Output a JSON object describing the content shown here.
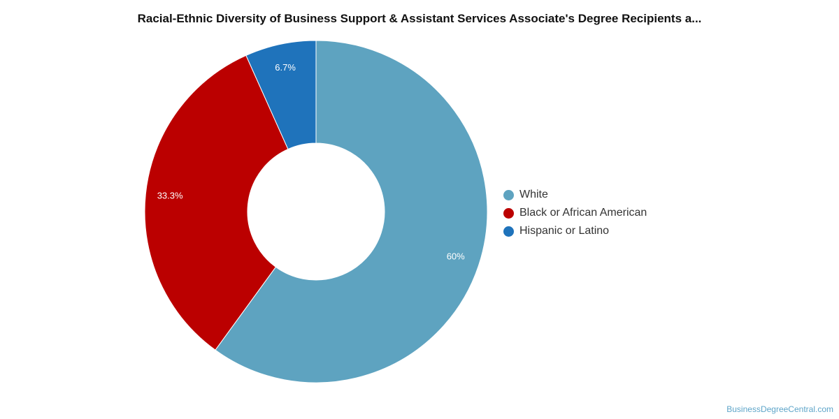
{
  "chart_data": {
    "type": "pie",
    "style": "donut",
    "title": "Racial-Ethnic Diversity of Business Support & Assistant Services Associate's Degree Recipients a...",
    "categories": [
      "White",
      "Black or African American",
      "Hispanic or Latino"
    ],
    "values": [
      60,
      33.3,
      6.7
    ],
    "value_labels": [
      "60%",
      "33.3%",
      "6.7%"
    ],
    "colors": [
      "#5ea3c0",
      "#bb0000",
      "#1f73bb"
    ],
    "legend_position": "right",
    "start_angle": "top, clockwise"
  },
  "source_text": "BusinessDegreeCentral.com"
}
